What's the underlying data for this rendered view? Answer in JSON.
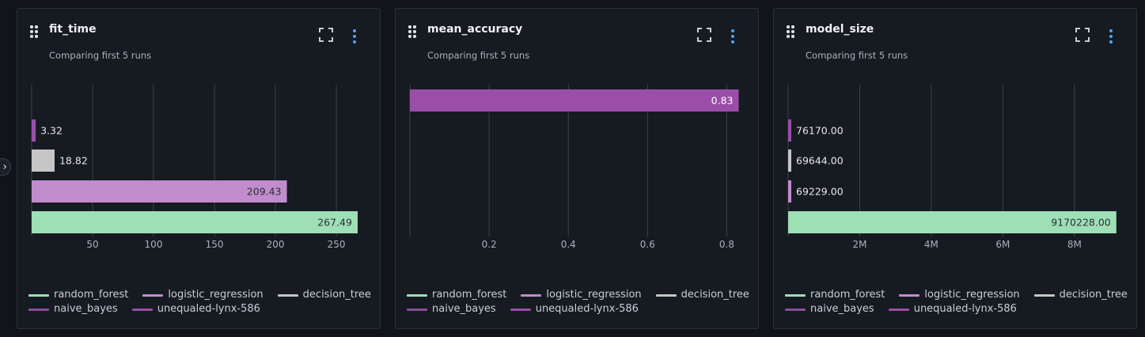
{
  "colors": {
    "random_forest": "#9fdfb6",
    "logistic_regression": "#c08ccc",
    "decision_tree": "#c6c6c6",
    "naive_bayes": "#8a4c9a",
    "unequaled_lynx_586": "#9a4ea8",
    "accent": "#4aa3ff"
  },
  "icons": [
    "drag-handle-icon",
    "expand-icon",
    "more-vertical-icon",
    "chevron-right-icon"
  ],
  "legend": [
    {
      "name": "random_forest",
      "color": "#9fdfb6"
    },
    {
      "name": "logistic_regression",
      "color": "#c08ccc"
    },
    {
      "name": "decision_tree",
      "color": "#c6c6c6"
    },
    {
      "name": "naive_bayes",
      "color": "#8a4c9a"
    },
    {
      "name": "unequaled-lynx-586",
      "color": "#9a4ea8"
    }
  ],
  "chart_data": [
    {
      "type": "bar",
      "orientation": "horizontal",
      "title": "fit_time",
      "subtitle": "Comparing first 5 runs",
      "bars": [
        {
          "run": "naive_bayes",
          "value": 3.32,
          "label": "3.32",
          "color": "#9a4ea8"
        },
        {
          "run": "decision_tree",
          "value": 18.82,
          "label": "18.82",
          "color": "#c6c6c6"
        },
        {
          "run": "logistic_regression",
          "value": 209.43,
          "label": "209.43",
          "color": "#c08ccc"
        },
        {
          "run": "random_forest",
          "value": 267.49,
          "label": "267.49",
          "color": "#9fdfb6"
        }
      ],
      "ticks": [
        50,
        100,
        150,
        200,
        250
      ],
      "tick_labels": [
        "50",
        "100",
        "150",
        "200",
        "250"
      ],
      "xlim": [
        0,
        274
      ],
      "grid": true
    },
    {
      "type": "bar",
      "orientation": "horizontal",
      "title": "mean_accuracy",
      "subtitle": "Comparing first 5 runs",
      "bars": [
        {
          "run": "unequaled-lynx-586",
          "value": 0.83,
          "label": "0.83",
          "color": "#9a4ea8"
        }
      ],
      "ticks": [
        0.2,
        0.4,
        0.6,
        0.8
      ],
      "tick_labels": [
        "0.2",
        "0.4",
        "0.6",
        "0.8"
      ],
      "xlim": [
        0,
        0.843
      ],
      "grid": true
    },
    {
      "type": "bar",
      "orientation": "horizontal",
      "title": "model_size",
      "subtitle": "Comparing first 5 runs",
      "bars": [
        {
          "run": "naive_bayes",
          "value": 76170.0,
          "label": "76170.00",
          "color": "#9a4ea8"
        },
        {
          "run": "decision_tree",
          "value": 69644.0,
          "label": "69644.00",
          "color": "#c6c6c6"
        },
        {
          "run": "logistic_regression",
          "value": 69229.0,
          "label": "69229.00",
          "color": "#c08ccc"
        },
        {
          "run": "random_forest",
          "value": 9170228.0,
          "label": "9170228.00",
          "color": "#9fdfb6"
        }
      ],
      "ticks": [
        2000000,
        4000000,
        6000000,
        8000000
      ],
      "tick_labels": [
        "2M",
        "4M",
        "6M",
        "8M"
      ],
      "xlim": [
        0,
        9330000
      ],
      "grid": true
    }
  ]
}
